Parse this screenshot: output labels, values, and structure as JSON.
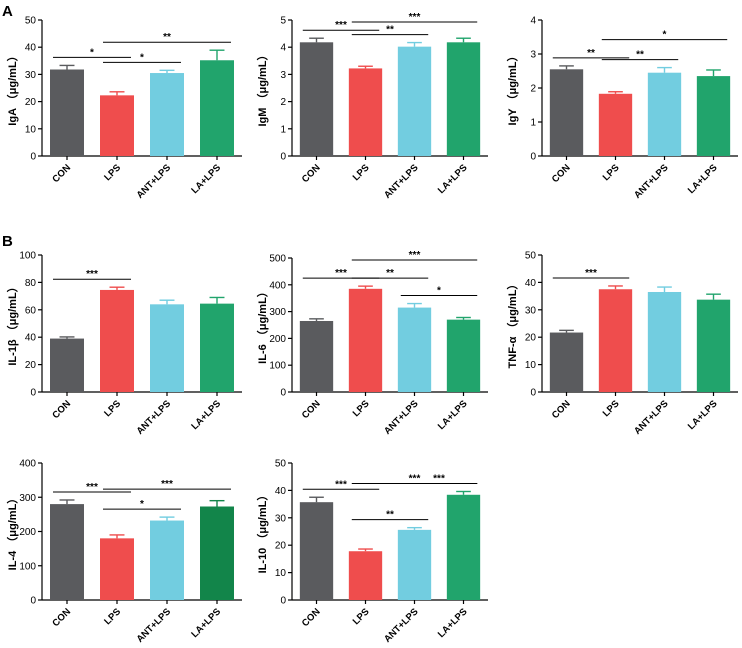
{
  "panel_labels": [
    "A",
    "B"
  ],
  "colors": {
    "CON": "#5a5b5e",
    "LPS": "#ef4d4d",
    "ANT+LPS": "#72cde0",
    "LA+LPS": "#21a46c",
    "LA+LPS_dark": "#12854a",
    "axis": "#000000"
  },
  "chart_data": [
    {
      "id": "iga",
      "type": "bar",
      "panel": "A",
      "categories": [
        "CON",
        "LPS",
        "ANT+LPS",
        "LA+LPS"
      ],
      "values": [
        31.8,
        22.3,
        30.5,
        35.2
      ],
      "errors": [
        1.5,
        1.3,
        1.0,
        3.7
      ],
      "ylabel": "IgA （μg/mL）",
      "ylim": [
        0,
        50
      ],
      "yticks": [
        0,
        10,
        20,
        30,
        40,
        50
      ],
      "bar_colors": [
        "#5a5b5e",
        "#ef4d4d",
        "#72cde0",
        "#21a46c"
      ],
      "significance": [
        {
          "from": 0,
          "to": 1,
          "label": "*",
          "level": 0
        },
        {
          "from": 1,
          "to": 2,
          "label": "*",
          "level": 1
        },
        {
          "from": 1,
          "to": 3,
          "label": "**",
          "level": 2
        }
      ]
    },
    {
      "id": "igm",
      "type": "bar",
      "panel": "A",
      "categories": [
        "CON",
        "LPS",
        "ANT+LPS",
        "LA+LPS"
      ],
      "values": [
        4.18,
        3.22,
        4.02,
        4.18
      ],
      "errors": [
        0.15,
        0.08,
        0.15,
        0.15
      ],
      "ylabel": "IgM （μg/mL）",
      "ylim": [
        0,
        5
      ],
      "yticks": [
        0,
        1,
        2,
        3,
        4,
        5
      ],
      "bar_colors": [
        "#5a5b5e",
        "#ef4d4d",
        "#72cde0",
        "#21a46c"
      ],
      "significance": [
        {
          "from": 0,
          "to": 1,
          "label": "***",
          "level": 0
        },
        {
          "from": 1,
          "to": 2,
          "label": "**",
          "level": 1
        },
        {
          "from": 1,
          "to": 3,
          "label": "***",
          "level": 2
        }
      ]
    },
    {
      "id": "igy",
      "type": "bar",
      "panel": "A",
      "categories": [
        "CON",
        "LPS",
        "ANT+LPS",
        "LA+LPS"
      ],
      "values": [
        2.55,
        1.83,
        2.45,
        2.35
      ],
      "errors": [
        0.1,
        0.06,
        0.15,
        0.18
      ],
      "ylabel": "IgY （μg/mL）",
      "ylim": [
        0,
        4
      ],
      "yticks": [
        0,
        1,
        2,
        3,
        4
      ],
      "bar_colors": [
        "#5a5b5e",
        "#ef4d4d",
        "#72cde0",
        "#21a46c"
      ],
      "significance": [
        {
          "from": 0,
          "to": 1,
          "label": "**",
          "level": 0
        },
        {
          "from": 1,
          "to": 2,
          "label": "**",
          "level": 1
        },
        {
          "from": 1,
          "to": 3,
          "label": "*",
          "level": 2
        }
      ]
    },
    {
      "id": "il1b",
      "type": "bar",
      "panel": "B",
      "categories": [
        "CON",
        "LPS",
        "ANT+LPS",
        "LA+LPS"
      ],
      "values": [
        39.0,
        74.5,
        64.0,
        64.5
      ],
      "errors": [
        1.2,
        2.0,
        3.0,
        4.5
      ],
      "ylabel": "IL-1β （μg/mL）",
      "ylim": [
        0,
        100
      ],
      "yticks": [
        0,
        20,
        40,
        60,
        80,
        100
      ],
      "bar_colors": [
        "#5a5b5e",
        "#ef4d4d",
        "#72cde0",
        "#21a46c"
      ],
      "significance": [
        {
          "from": 0,
          "to": 1,
          "label": "***",
          "level": 0
        }
      ]
    },
    {
      "id": "il6",
      "type": "bar",
      "panel": "B",
      "categories": [
        "CON",
        "LPS",
        "ANT+LPS",
        "LA+LPS"
      ],
      "values": [
        265,
        385,
        315,
        270
      ],
      "errors": [
        8,
        10,
        15,
        8
      ],
      "ylabel": "IL-6 （μg/mL）",
      "ylim": [
        0,
        500
      ],
      "yticks": [
        0,
        100,
        200,
        300,
        400,
        500
      ],
      "bar_colors": [
        "#5a5b5e",
        "#ef4d4d",
        "#72cde0",
        "#21a46c"
      ],
      "significance": [
        {
          "from": 0,
          "to": 1,
          "label": "***",
          "level": 0
        },
        {
          "from": 1,
          "to": 2,
          "label": "**",
          "level": 1
        },
        {
          "from": 1,
          "to": 3,
          "label": "***",
          "level": 2
        },
        {
          "from": 2,
          "to": 3,
          "label": "*",
          "level": 0
        }
      ]
    },
    {
      "id": "tnfa",
      "type": "bar",
      "panel": "B",
      "categories": [
        "CON",
        "LPS",
        "ANT+LPS",
        "LA+LPS"
      ],
      "values": [
        21.7,
        37.5,
        36.5,
        33.7
      ],
      "errors": [
        0.8,
        1.2,
        1.8,
        2.0
      ],
      "ylabel": "TNF-α （μg/mL）",
      "ylim": [
        0,
        50
      ],
      "yticks": [
        0,
        10,
        20,
        30,
        40,
        50
      ],
      "bar_colors": [
        "#5a5b5e",
        "#ef4d4d",
        "#72cde0",
        "#21a46c"
      ],
      "significance": [
        {
          "from": 0,
          "to": 1,
          "label": "***",
          "level": 0
        }
      ]
    },
    {
      "id": "il4",
      "type": "bar",
      "panel": "B",
      "categories": [
        "CON",
        "LPS",
        "ANT+LPS",
        "LA+LPS"
      ],
      "values": [
        280,
        180,
        232,
        273
      ],
      "errors": [
        12,
        10,
        10,
        17
      ],
      "ylabel": "IL-4 （μg/mL）",
      "ylim": [
        0,
        400
      ],
      "yticks": [
        0,
        100,
        200,
        300,
        400
      ],
      "bar_colors": [
        "#5a5b5e",
        "#ef4d4d",
        "#72cde0",
        "#12854a"
      ],
      "significance": [
        {
          "from": 0,
          "to": 1,
          "label": "***",
          "level": 0
        },
        {
          "from": 1,
          "to": 2,
          "label": "*",
          "level": 1
        },
        {
          "from": 1,
          "to": 3,
          "label": "***",
          "level": 2
        }
      ]
    },
    {
      "id": "il10",
      "type": "bar",
      "panel": "B",
      "categories": [
        "CON",
        "LPS",
        "ANT+LPS",
        "LA+LPS"
      ],
      "values": [
        35.7,
        17.8,
        25.6,
        38.4
      ],
      "errors": [
        1.8,
        0.8,
        0.8,
        1.2
      ],
      "ylabel": "IL-10 （μg/mL）",
      "ylim": [
        0,
        50
      ],
      "yticks": [
        0,
        10,
        20,
        30,
        40,
        50
      ],
      "bar_colors": [
        "#5a5b5e",
        "#ef4d4d",
        "#72cde0",
        "#21a46c"
      ],
      "significance": [
        {
          "from": 0,
          "to": 1,
          "label": "***",
          "level": 0
        },
        {
          "from": 1,
          "to": 2,
          "label": "**",
          "level": 1
        },
        {
          "from": 1,
          "to": 3,
          "label": "***",
          "level": 2
        },
        {
          "from": 2,
          "to": 3,
          "label": "***",
          "level": 0
        }
      ]
    }
  ]
}
